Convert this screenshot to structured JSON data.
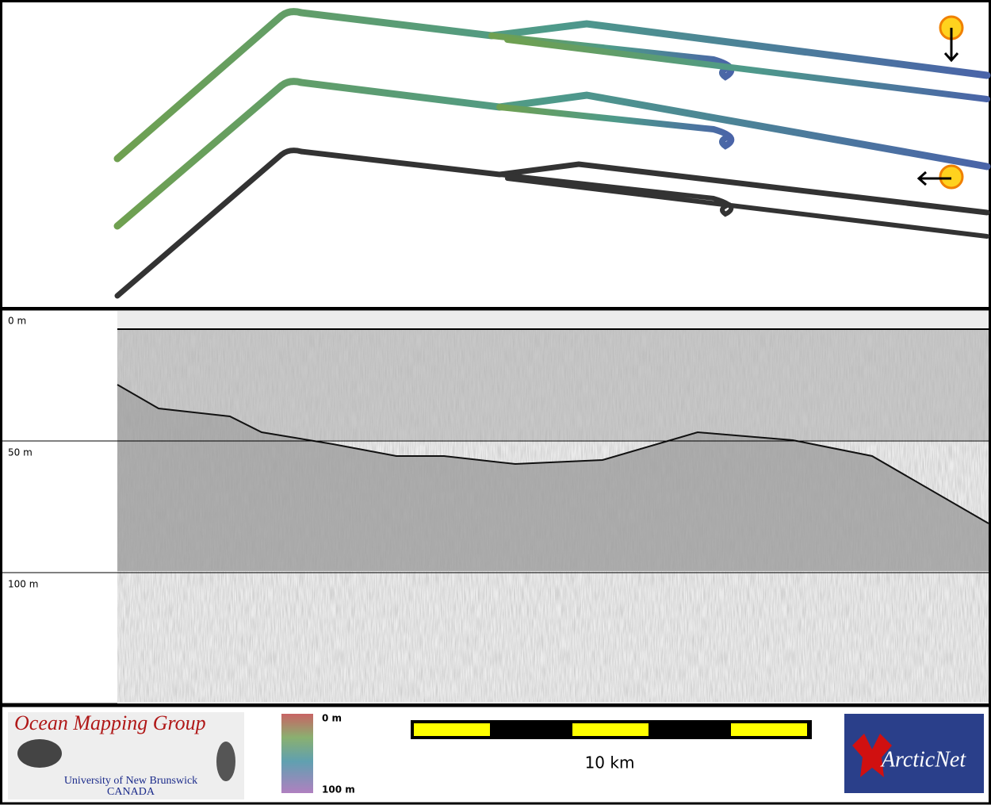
{
  "profile": {
    "depth_labels": [
      "0 m",
      "50 m",
      "100 m"
    ]
  },
  "footer": {
    "logo_title": "Ocean Mapping Group",
    "logo_university": "University of New Brunswick",
    "logo_country": "CANADA",
    "colorbar_top": "0 m",
    "colorbar_bottom": "100 m",
    "scale_label": "10 km",
    "partner_logo": "ArcticNet"
  }
}
